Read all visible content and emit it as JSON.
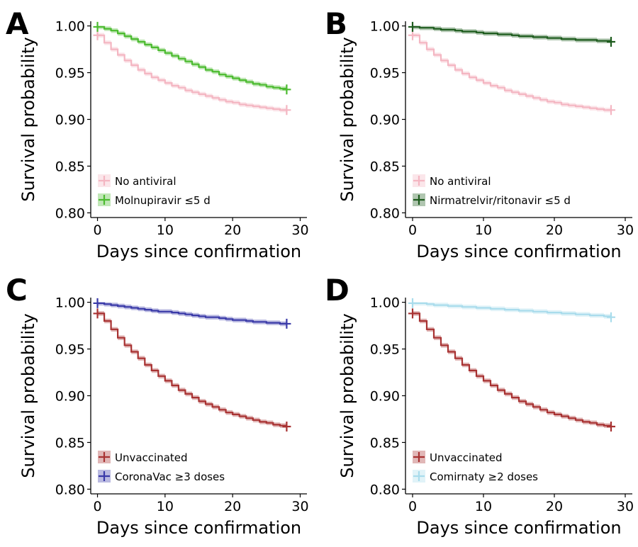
{
  "panels": [
    {
      "letter": "A",
      "chart_data": {
        "type": "line",
        "subtype": "kaplan-meier-step",
        "xlabel": "Days since confirmation",
        "ylabel": "Survival probability",
        "xlim": [
          -1,
          31
        ],
        "ylim": [
          0.795,
          1.005
        ],
        "xticks": [
          0,
          10,
          20,
          30
        ],
        "yticks": [
          0.8,
          0.85,
          0.9,
          0.95,
          1.0
        ],
        "ytick_labels": [
          "0.80",
          "0.85",
          "0.90",
          "0.95",
          "1.00"
        ],
        "grid": false,
        "legend_position": "bottom-left",
        "x": [
          0,
          1,
          2,
          3,
          4,
          5,
          6,
          7,
          8,
          9,
          10,
          11,
          12,
          13,
          14,
          15,
          16,
          17,
          18,
          19,
          20,
          21,
          22,
          23,
          24,
          25,
          26,
          27,
          28
        ],
        "series": [
          {
            "name": "No antiviral",
            "color": "#f4b6c2",
            "values": [
              0.99,
              0.982,
              0.975,
              0.969,
              0.963,
              0.958,
              0.953,
              0.949,
              0.945,
              0.942,
              0.939,
              0.936,
              0.934,
              0.931,
              0.929,
              0.927,
              0.925,
              0.923,
              0.921,
              0.919,
              0.918,
              0.916,
              0.915,
              0.914,
              0.913,
              0.912,
              0.911,
              0.91,
              0.91
            ]
          },
          {
            "name": "Molnupiravir ≤5 d",
            "color": "#4cbb30",
            "values": [
              0.999,
              0.997,
              0.995,
              0.992,
              0.989,
              0.986,
              0.983,
              0.98,
              0.977,
              0.974,
              0.971,
              0.968,
              0.965,
              0.962,
              0.959,
              0.956,
              0.953,
              0.951,
              0.948,
              0.946,
              0.944,
              0.942,
              0.94,
              0.938,
              0.937,
              0.935,
              0.934,
              0.933,
              0.932
            ]
          }
        ]
      }
    },
    {
      "letter": "B",
      "chart_data": {
        "type": "line",
        "subtype": "kaplan-meier-step",
        "xlabel": "Days since confirmation",
        "ylabel": "Survival probability",
        "xlim": [
          -1,
          31
        ],
        "ylim": [
          0.795,
          1.005
        ],
        "xticks": [
          0,
          10,
          20,
          30
        ],
        "yticks": [
          0.8,
          0.85,
          0.9,
          0.95,
          1.0
        ],
        "ytick_labels": [
          "0.80",
          "0.85",
          "0.90",
          "0.95",
          "1.00"
        ],
        "grid": false,
        "legend_position": "bottom-left",
        "x": [
          0,
          1,
          2,
          3,
          4,
          5,
          6,
          7,
          8,
          9,
          10,
          11,
          12,
          13,
          14,
          15,
          16,
          17,
          18,
          19,
          20,
          21,
          22,
          23,
          24,
          25,
          26,
          27,
          28
        ],
        "series": [
          {
            "name": "No antiviral",
            "color": "#f4b6c2",
            "values": [
              0.99,
              0.982,
              0.975,
              0.969,
              0.963,
              0.958,
              0.953,
              0.949,
              0.945,
              0.942,
              0.939,
              0.936,
              0.934,
              0.931,
              0.929,
              0.927,
              0.925,
              0.923,
              0.921,
              0.919,
              0.918,
              0.916,
              0.915,
              0.914,
              0.913,
              0.912,
              0.911,
              0.91,
              0.91
            ]
          },
          {
            "name": "Nirmatrelvir/ritonavir ≤5 d",
            "color": "#1e5c1e",
            "values": [
              0.999,
              0.998,
              0.998,
              0.997,
              0.996,
              0.996,
              0.995,
              0.994,
              0.994,
              0.993,
              0.992,
              0.992,
              0.991,
              0.991,
              0.99,
              0.989,
              0.989,
              0.988,
              0.988,
              0.987,
              0.987,
              0.986,
              0.986,
              0.985,
              0.985,
              0.985,
              0.984,
              0.984,
              0.983
            ]
          }
        ]
      }
    },
    {
      "letter": "C",
      "chart_data": {
        "type": "line",
        "subtype": "kaplan-meier-step",
        "xlabel": "Days since confirmation",
        "ylabel": "Survival probability",
        "xlim": [
          -1,
          31
        ],
        "ylim": [
          0.795,
          1.005
        ],
        "xticks": [
          0,
          10,
          20,
          30
        ],
        "yticks": [
          0.8,
          0.85,
          0.9,
          0.95,
          1.0
        ],
        "ytick_labels": [
          "0.80",
          "0.85",
          "0.90",
          "0.95",
          "1.00"
        ],
        "grid": false,
        "legend_position": "bottom-left",
        "x": [
          0,
          1,
          2,
          3,
          4,
          5,
          6,
          7,
          8,
          9,
          10,
          11,
          12,
          13,
          14,
          15,
          16,
          17,
          18,
          19,
          20,
          21,
          22,
          23,
          24,
          25,
          26,
          27,
          28
        ],
        "series": [
          {
            "name": "Unvaccinated",
            "color": "#a83232",
            "values": [
              0.988,
              0.98,
              0.971,
              0.962,
              0.954,
              0.947,
              0.94,
              0.933,
              0.927,
              0.921,
              0.916,
              0.911,
              0.906,
              0.902,
              0.898,
              0.894,
              0.891,
              0.888,
              0.885,
              0.882,
              0.88,
              0.878,
              0.876,
              0.874,
              0.872,
              0.871,
              0.869,
              0.868,
              0.867
            ]
          },
          {
            "name": "CoronaVac ≥3 doses",
            "color": "#3a3aa8",
            "values": [
              0.999,
              0.998,
              0.997,
              0.996,
              0.995,
              0.994,
              0.993,
              0.992,
              0.991,
              0.99,
              0.99,
              0.989,
              0.988,
              0.987,
              0.986,
              0.985,
              0.984,
              0.984,
              0.983,
              0.982,
              0.981,
              0.981,
              0.98,
              0.979,
              0.979,
              0.978,
              0.978,
              0.977,
              0.977
            ]
          }
        ]
      }
    },
    {
      "letter": "D",
      "chart_data": {
        "type": "line",
        "subtype": "kaplan-meier-step",
        "xlabel": "Days since confirmation",
        "ylabel": "Survival probability",
        "xlim": [
          -1,
          31
        ],
        "ylim": [
          0.795,
          1.005
        ],
        "xticks": [
          0,
          10,
          20,
          30
        ],
        "yticks": [
          0.8,
          0.85,
          0.9,
          0.95,
          1.0
        ],
        "ytick_labels": [
          "0.80",
          "0.85",
          "0.90",
          "0.95",
          "1.00"
        ],
        "grid": false,
        "legend_position": "bottom-left",
        "x": [
          0,
          1,
          2,
          3,
          4,
          5,
          6,
          7,
          8,
          9,
          10,
          11,
          12,
          13,
          14,
          15,
          16,
          17,
          18,
          19,
          20,
          21,
          22,
          23,
          24,
          25,
          26,
          27,
          28
        ],
        "series": [
          {
            "name": "Unvaccinated",
            "color": "#a83232",
            "values": [
              0.988,
              0.98,
              0.971,
              0.962,
              0.954,
              0.947,
              0.94,
              0.933,
              0.927,
              0.921,
              0.916,
              0.911,
              0.906,
              0.902,
              0.898,
              0.894,
              0.891,
              0.888,
              0.885,
              0.882,
              0.88,
              0.878,
              0.876,
              0.874,
              0.872,
              0.871,
              0.869,
              0.868,
              0.867
            ]
          },
          {
            "name": "Comirnaty ≥2 doses",
            "color": "#a9dcec",
            "values": [
              0.999,
              0.999,
              0.998,
              0.997,
              0.997,
              0.996,
              0.996,
              0.995,
              0.995,
              0.994,
              0.994,
              0.993,
              0.993,
              0.992,
              0.992,
              0.991,
              0.991,
              0.99,
              0.99,
              0.989,
              0.989,
              0.988,
              0.988,
              0.987,
              0.987,
              0.986,
              0.986,
              0.985,
              0.984
            ]
          }
        ]
      }
    }
  ]
}
